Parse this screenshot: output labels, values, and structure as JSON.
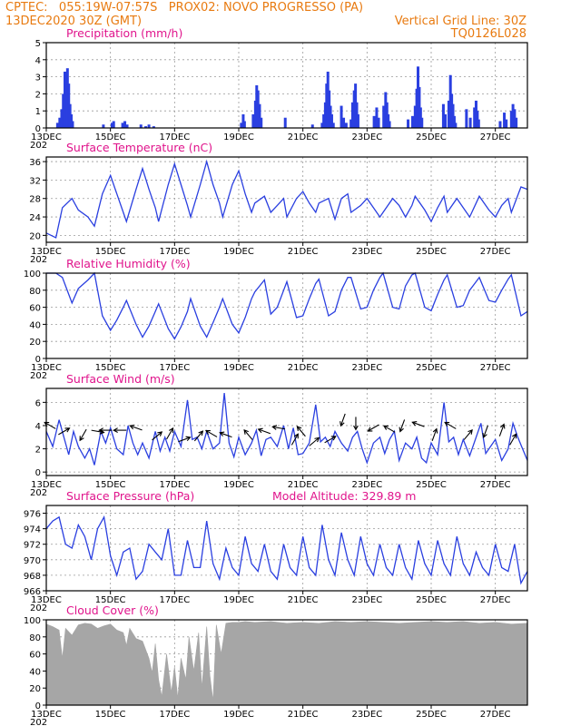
{
  "header": {
    "line1_left": "CPTEC:   055:19W-07:57S   PROX02: NOVO PROGRESSO (PA)",
    "line2_left": "13DEC2020 30Z (GMT)",
    "line2_right": "Vertical Grid Line: 30Z",
    "line3_right": "TQ0126L028"
  },
  "model_altitude": "Model Altitude: 329.89 m",
  "x_axis": {
    "date_labels": [
      "13DEC",
      "15DEC",
      "17DEC",
      "19DEC",
      "21DEC",
      "23DEC",
      "25DEC",
      "27DEC"
    ],
    "year_label": "202",
    "start_day": 13,
    "end_day": 28
  },
  "chart_data": [
    {
      "id": "precipitation",
      "type": "bar",
      "title": "Precipitation  (mm/h)",
      "ylim": [
        0,
        5
      ],
      "yticks": [
        "0",
        "1",
        "2",
        "3",
        "4",
        "5"
      ],
      "bars": [
        [
          13.35,
          0.3
        ],
        [
          13.42,
          0.6
        ],
        [
          13.48,
          1.1
        ],
        [
          13.53,
          2.0
        ],
        [
          13.58,
          3.3
        ],
        [
          13.62,
          3.0
        ],
        [
          13.66,
          3.5
        ],
        [
          13.7,
          2.6
        ],
        [
          13.74,
          1.4
        ],
        [
          13.78,
          0.8
        ],
        [
          13.82,
          0.4
        ],
        [
          14.78,
          0.2
        ],
        [
          15.05,
          0.3
        ],
        [
          15.1,
          0.4
        ],
        [
          15.38,
          0.3
        ],
        [
          15.45,
          0.4
        ],
        [
          15.52,
          0.2
        ],
        [
          15.95,
          0.2
        ],
        [
          16.1,
          0.1
        ],
        [
          16.2,
          0.2
        ],
        [
          16.35,
          0.1
        ],
        [
          19.08,
          0.3
        ],
        [
          19.14,
          0.8
        ],
        [
          19.18,
          0.4
        ],
        [
          19.45,
          0.8
        ],
        [
          19.52,
          1.6
        ],
        [
          19.56,
          2.5
        ],
        [
          19.6,
          2.2
        ],
        [
          19.65,
          1.4
        ],
        [
          19.7,
          0.6
        ],
        [
          20.45,
          0.6
        ],
        [
          21.3,
          0.2
        ],
        [
          21.6,
          0.3
        ],
        [
          21.65,
          0.8
        ],
        [
          21.7,
          1.5
        ],
        [
          21.74,
          2.6
        ],
        [
          21.78,
          3.3
        ],
        [
          21.82,
          2.2
        ],
        [
          21.86,
          1.3
        ],
        [
          21.9,
          0.8
        ],
        [
          21.95,
          0.3
        ],
        [
          22.2,
          1.3
        ],
        [
          22.27,
          0.6
        ],
        [
          22.35,
          0.3
        ],
        [
          22.5,
          0.5
        ],
        [
          22.55,
          1.5
        ],
        [
          22.6,
          2.2
        ],
        [
          22.64,
          2.6
        ],
        [
          22.68,
          1.5
        ],
        [
          22.72,
          0.8
        ],
        [
          23.22,
          0.7
        ],
        [
          23.3,
          1.2
        ],
        [
          23.36,
          0.6
        ],
        [
          23.52,
          1.3
        ],
        [
          23.58,
          2.1
        ],
        [
          23.62,
          1.5
        ],
        [
          23.66,
          0.8
        ],
        [
          23.7,
          0.4
        ],
        [
          24.28,
          0.5
        ],
        [
          24.42,
          0.7
        ],
        [
          24.5,
          1.3
        ],
        [
          24.55,
          2.3
        ],
        [
          24.59,
          3.6
        ],
        [
          24.63,
          2.4
        ],
        [
          24.67,
          1.2
        ],
        [
          24.71,
          0.6
        ],
        [
          25.38,
          1.4
        ],
        [
          25.44,
          0.8
        ],
        [
          25.55,
          1.6
        ],
        [
          25.6,
          3.1
        ],
        [
          25.64,
          2.0
        ],
        [
          25.68,
          1.4
        ],
        [
          25.72,
          0.7
        ],
        [
          25.76,
          0.3
        ],
        [
          26.1,
          1.1
        ],
        [
          26.22,
          0.6
        ],
        [
          26.35,
          1.2
        ],
        [
          26.4,
          1.6
        ],
        [
          26.44,
          1.0
        ],
        [
          26.48,
          0.5
        ],
        [
          27.15,
          0.4
        ],
        [
          27.28,
          0.9
        ],
        [
          27.34,
          0.5
        ],
        [
          27.5,
          1.0
        ],
        [
          27.55,
          1.4
        ],
        [
          27.6,
          1.1
        ],
        [
          27.65,
          0.6
        ]
      ]
    },
    {
      "id": "temperature",
      "type": "line",
      "title": "Surface Temperature (nC)",
      "ylim": [
        18.5,
        37
      ],
      "yticks": [
        "20",
        "24",
        "28",
        "32",
        "36"
      ],
      "x": [
        13.0,
        13.3,
        13.5,
        13.8,
        14.0,
        14.3,
        14.5,
        14.75,
        15.0,
        15.2,
        15.4,
        15.5,
        15.8,
        16.0,
        16.2,
        16.4,
        16.5,
        16.8,
        17.0,
        17.2,
        17.4,
        17.5,
        17.8,
        18.0,
        18.2,
        18.4,
        18.5,
        18.8,
        19.0,
        19.2,
        19.4,
        19.5,
        19.8,
        20.0,
        20.2,
        20.4,
        20.5,
        20.8,
        21.0,
        21.2,
        21.4,
        21.5,
        21.8,
        22.0,
        22.2,
        22.4,
        22.5,
        22.8,
        23.0,
        23.2,
        23.4,
        23.5,
        23.8,
        24.0,
        24.2,
        24.4,
        24.5,
        24.8,
        25.0,
        25.2,
        25.4,
        25.5,
        25.8,
        26.0,
        26.2,
        26.4,
        26.5,
        26.8,
        27.0,
        27.2,
        27.4,
        27.5,
        27.8,
        28.0
      ],
      "y": [
        20.5,
        19.5,
        26,
        28,
        25.5,
        24,
        22,
        29,
        33,
        29,
        25,
        23,
        30,
        34.5,
        30,
        26,
        23,
        31,
        35.5,
        31,
        26.5,
        24,
        31,
        36,
        31,
        27,
        24,
        31,
        34,
        29,
        25,
        27,
        28.5,
        25,
        26.5,
        28,
        24,
        28,
        29.5,
        27,
        25,
        27,
        28,
        23.5,
        28,
        29,
        25,
        26.5,
        28,
        26,
        24,
        25,
        28,
        26.5,
        24,
        26.5,
        28.5,
        25.5,
        23,
        26,
        28.5,
        25,
        28,
        26,
        24,
        27,
        28.5,
        25.5,
        24,
        26.5,
        28,
        25,
        30.5,
        30
      ]
    },
    {
      "id": "humidity",
      "type": "line",
      "title": "Relative Humidity  (%)",
      "ylim": [
        0,
        100
      ],
      "yticks": [
        "0",
        "20",
        "40",
        "60",
        "80",
        "100"
      ],
      "x": [
        13.0,
        13.3,
        13.5,
        13.8,
        14.0,
        14.3,
        14.5,
        14.75,
        15.0,
        15.2,
        15.4,
        15.5,
        15.8,
        16.0,
        16.2,
        16.4,
        16.5,
        16.8,
        17.0,
        17.2,
        17.4,
        17.5,
        17.8,
        18.0,
        18.2,
        18.4,
        18.5,
        18.8,
        19.0,
        19.2,
        19.4,
        19.5,
        19.8,
        20.0,
        20.2,
        20.4,
        20.5,
        20.8,
        21.0,
        21.2,
        21.4,
        21.5,
        21.8,
        22.0,
        22.2,
        22.4,
        22.5,
        22.8,
        23.0,
        23.2,
        23.4,
        23.5,
        23.8,
        24.0,
        24.2,
        24.4,
        24.5,
        24.8,
        25.0,
        25.2,
        25.4,
        25.5,
        25.8,
        26.0,
        26.2,
        26.4,
        26.5,
        26.8,
        27.0,
        27.2,
        27.4,
        27.5,
        27.8,
        28.0
      ],
      "y": [
        100,
        100,
        95,
        65,
        82,
        92,
        100,
        50,
        33,
        45,
        60,
        68,
        40,
        25,
        38,
        55,
        64,
        35,
        23,
        37,
        55,
        70,
        38,
        25,
        42,
        60,
        70,
        40,
        30,
        48,
        70,
        78,
        92,
        52,
        60,
        80,
        90,
        48,
        50,
        70,
        88,
        93,
        50,
        55,
        80,
        95,
        95,
        58,
        60,
        80,
        95,
        100,
        60,
        58,
        85,
        98,
        100,
        60,
        56,
        75,
        92,
        98,
        60,
        62,
        80,
        90,
        95,
        68,
        66,
        80,
        93,
        98,
        50,
        55
      ]
    },
    {
      "id": "wind",
      "type": "line",
      "title": "Surface Wind  (m/s)",
      "ylim": [
        -0.3,
        7.2
      ],
      "yticks": [
        "0",
        "2",
        "4",
        "6"
      ],
      "x": [
        13.0,
        13.2,
        13.4,
        13.55,
        13.7,
        13.85,
        14.0,
        14.2,
        14.35,
        14.5,
        14.7,
        14.85,
        15.0,
        15.2,
        15.4,
        15.55,
        15.7,
        15.85,
        16.0,
        16.2,
        16.4,
        16.55,
        16.7,
        16.85,
        17.0,
        17.2,
        17.4,
        17.55,
        17.7,
        17.85,
        18.0,
        18.2,
        18.4,
        18.55,
        18.7,
        18.85,
        19.0,
        19.2,
        19.4,
        19.55,
        19.7,
        19.85,
        20.0,
        20.2,
        20.4,
        20.55,
        20.7,
        20.85,
        21.0,
        21.2,
        21.4,
        21.55,
        21.7,
        21.85,
        22.0,
        22.2,
        22.4,
        22.55,
        22.7,
        22.85,
        23.0,
        23.2,
        23.4,
        23.55,
        23.7,
        23.85,
        24.0,
        24.2,
        24.4,
        24.55,
        24.7,
        24.85,
        25.0,
        25.2,
        25.4,
        25.55,
        25.7,
        25.85,
        26.0,
        26.2,
        26.4,
        26.55,
        26.7,
        26.85,
        27.0,
        27.2,
        27.4,
        27.55,
        27.7,
        27.85,
        28.0
      ],
      "y": [
        3.5,
        2.2,
        4.5,
        3.0,
        1.5,
        3.5,
        2.2,
        1.2,
        2.0,
        0.6,
        3.5,
        2.5,
        3.8,
        2.0,
        1.5,
        4.0,
        2.5,
        1.5,
        2.5,
        1.2,
        3.5,
        1.8,
        3.0,
        1.8,
        3.5,
        2.2,
        6.2,
        2.8,
        3.0,
        2.0,
        3.5,
        2.0,
        2.5,
        6.8,
        2.5,
        1.3,
        3.0,
        1.5,
        2.5,
        3.6,
        1.4,
        2.8,
        3.0,
        2.2,
        4.0,
        2.0,
        3.8,
        1.5,
        1.6,
        2.5,
        5.8,
        2.6,
        3.0,
        2.2,
        3.5,
        2.5,
        1.8,
        3.0,
        3.5,
        2.0,
        0.8,
        2.5,
        3.0,
        1.6,
        2.8,
        3.5,
        1.0,
        2.5,
        2.0,
        3.0,
        1.2,
        0.8,
        2.5,
        1.5,
        6.0,
        2.6,
        3.0,
        1.5,
        2.8,
        1.4,
        3.0,
        4.2,
        1.6,
        2.2,
        2.8,
        1.0,
        2.0,
        4.2,
        3.0,
        2.0,
        1.0
      ],
      "vectors": [
        {
          "x": 13.12,
          "y": 4.0,
          "dir": 300
        },
        {
          "x": 13.55,
          "y": 3.5,
          "dir": 60
        },
        {
          "x": 14.15,
          "y": 3.2,
          "dir": 210
        },
        {
          "x": 14.6,
          "y": 3.5,
          "dir": 100
        },
        {
          "x": 14.85,
          "y": 3.6,
          "dir": 270
        },
        {
          "x": 15.3,
          "y": 3.6,
          "dir": 270
        },
        {
          "x": 15.8,
          "y": 3.8,
          "dir": 290
        },
        {
          "x": 16.45,
          "y": 3.1,
          "dir": 50
        },
        {
          "x": 16.85,
          "y": 3.3,
          "dir": 30
        },
        {
          "x": 17.3,
          "y": 2.8,
          "dir": 70
        },
        {
          "x": 17.75,
          "y": 3.1,
          "dir": 40
        },
        {
          "x": 18.15,
          "y": 3.3,
          "dir": 300
        },
        {
          "x": 18.6,
          "y": 3.2,
          "dir": 290
        },
        {
          "x": 19.3,
          "y": 3.2,
          "dir": 320
        },
        {
          "x": 19.8,
          "y": 3.5,
          "dir": 290
        },
        {
          "x": 20.25,
          "y": 3.8,
          "dir": 280
        },
        {
          "x": 20.75,
          "y": 2.8,
          "dir": 30
        },
        {
          "x": 20.95,
          "y": 3.5,
          "dir": 320
        },
        {
          "x": 21.35,
          "y": 2.6,
          "dir": 50
        },
        {
          "x": 21.85,
          "y": 2.8,
          "dir": 60
        },
        {
          "x": 22.25,
          "y": 4.5,
          "dir": 200
        },
        {
          "x": 22.65,
          "y": 4.2,
          "dir": 180
        },
        {
          "x": 23.2,
          "y": 3.8,
          "dir": 240
        },
        {
          "x": 23.7,
          "y": 3.7,
          "dir": 300
        },
        {
          "x": 24.1,
          "y": 4.0,
          "dir": 200
        },
        {
          "x": 24.6,
          "y": 4.1,
          "dir": 290
        },
        {
          "x": 25.1,
          "y": 3.2,
          "dir": 20
        },
        {
          "x": 25.6,
          "y": 4.0,
          "dir": 300
        },
        {
          "x": 26.15,
          "y": 3.2,
          "dir": 40
        },
        {
          "x": 26.7,
          "y": 3.5,
          "dir": 200
        },
        {
          "x": 27.2,
          "y": 3.6,
          "dir": 20
        },
        {
          "x": 27.55,
          "y": 2.8,
          "dir": 30
        }
      ]
    },
    {
      "id": "pressure",
      "type": "line",
      "title": "Surface Pressure (hPa)",
      "ylim": [
        966,
        977
      ],
      "yticks": [
        "966",
        "968",
        "970",
        "972",
        "974",
        "976"
      ],
      "x": [
        13.0,
        13.2,
        13.4,
        13.6,
        13.8,
        14.0,
        14.2,
        14.4,
        14.6,
        14.8,
        15.0,
        15.2,
        15.4,
        15.6,
        15.8,
        16.0,
        16.2,
        16.4,
        16.6,
        16.8,
        17.0,
        17.2,
        17.4,
        17.6,
        17.8,
        18.0,
        18.2,
        18.4,
        18.6,
        18.8,
        19.0,
        19.2,
        19.4,
        19.6,
        19.8,
        20.0,
        20.2,
        20.4,
        20.6,
        20.8,
        21.0,
        21.2,
        21.4,
        21.6,
        21.8,
        22.0,
        22.2,
        22.4,
        22.6,
        22.8,
        23.0,
        23.2,
        23.4,
        23.6,
        23.8,
        24.0,
        24.2,
        24.4,
        24.6,
        24.8,
        25.0,
        25.2,
        25.4,
        25.6,
        25.8,
        26.0,
        26.2,
        26.4,
        26.6,
        26.8,
        27.0,
        27.2,
        27.4,
        27.6,
        27.8,
        28.0
      ],
      "y": [
        974,
        975,
        975.5,
        972,
        971.5,
        974.5,
        973,
        970,
        974,
        975.5,
        970.5,
        968,
        971,
        971.5,
        967.5,
        968.5,
        972,
        971,
        970,
        974,
        968,
        968,
        972.5,
        969,
        969,
        975,
        969.5,
        967.5,
        971.5,
        969,
        968,
        973,
        969.5,
        968.5,
        972,
        968.5,
        967.5,
        972,
        969,
        968,
        973,
        969,
        968,
        974.5,
        970,
        968,
        973.5,
        970,
        968,
        973,
        969.5,
        968,
        972,
        969,
        968,
        972,
        969,
        967.5,
        972.5,
        969.5,
        968,
        972.5,
        969.5,
        968,
        973,
        969.5,
        968,
        971,
        969,
        968,
        972,
        969,
        968.5,
        972,
        967,
        968.5
      ]
    },
    {
      "id": "cloud",
      "type": "area",
      "title": "Cloud Cover  (%)",
      "ylim": [
        0,
        100
      ],
      "yticks": [
        "0",
        "20",
        "40",
        "60",
        "80",
        "100"
      ],
      "x": [
        13.0,
        13.2,
        13.4,
        13.5,
        13.6,
        13.8,
        14.0,
        14.2,
        14.4,
        14.6,
        14.8,
        15.0,
        15.2,
        15.4,
        15.5,
        15.6,
        15.8,
        16.0,
        16.2,
        16.3,
        16.4,
        16.5,
        16.6,
        16.75,
        16.9,
        17.0,
        17.1,
        17.2,
        17.35,
        17.45,
        17.6,
        17.75,
        17.85,
        18.0,
        18.1,
        18.2,
        18.3,
        18.45,
        18.6,
        18.8,
        19.0,
        19.2,
        19.5,
        20.0,
        20.5,
        21.0,
        21.5,
        22.0,
        22.5,
        23.0,
        23.5,
        24.0,
        24.5,
        25.0,
        25.5,
        26.0,
        26.5,
        27.0,
        27.5,
        28.0
      ],
      "y": [
        95,
        92,
        88,
        55,
        90,
        82,
        94,
        96,
        95,
        90,
        93,
        95,
        88,
        85,
        70,
        90,
        78,
        75,
        55,
        38,
        72,
        30,
        10,
        60,
        15,
        45,
        8,
        55,
        30,
        80,
        40,
        85,
        20,
        92,
        35,
        5,
        94,
        60,
        96,
        97,
        97,
        98,
        97,
        98,
        96,
        97,
        96,
        98,
        97,
        98,
        97,
        96,
        97,
        98,
        97,
        98,
        96,
        97,
        95,
        96
      ]
    }
  ]
}
